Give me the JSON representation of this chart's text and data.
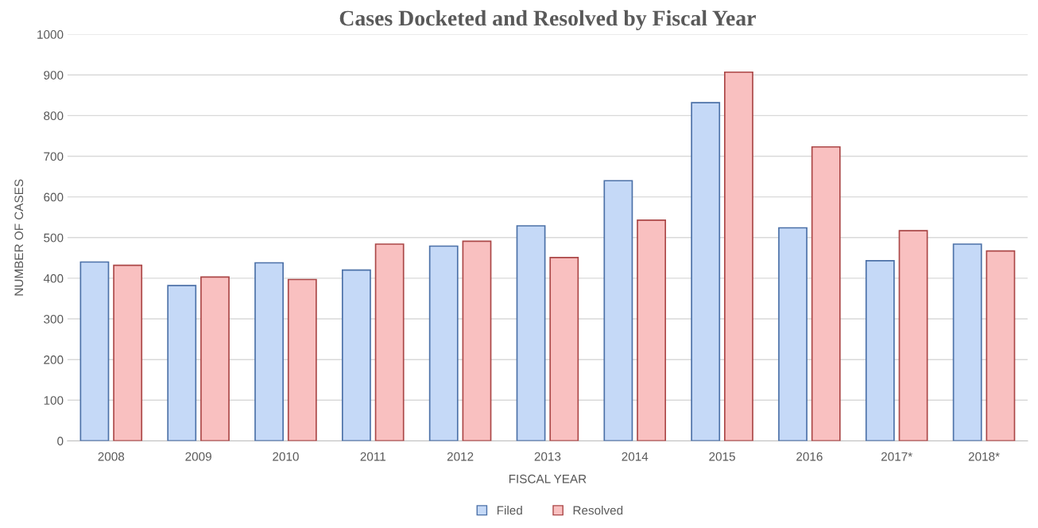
{
  "chart_data": {
    "type": "bar",
    "title": "Cases Docketed and Resolved by Fiscal Year",
    "xlabel": "FISCAL YEAR",
    "ylabel": "NUMBER OF CASES",
    "categories": [
      "2008",
      "2009",
      "2010",
      "2011",
      "2012",
      "2013",
      "2014",
      "2015",
      "2016",
      "2017*",
      "2018*"
    ],
    "series": [
      {
        "name": "Filed",
        "color": "#c5d9f7",
        "values": [
          440,
          382,
          438,
          420,
          479,
          529,
          640,
          832,
          524,
          443,
          484
        ]
      },
      {
        "name": "Resolved",
        "color": "#f9c0c0",
        "values": [
          432,
          403,
          397,
          484,
          491,
          451,
          543,
          907,
          723,
          517,
          467
        ]
      }
    ],
    "ylim": [
      0,
      1000
    ],
    "yticks": [
      0,
      100,
      200,
      300,
      400,
      500,
      600,
      700,
      800,
      900,
      1000
    ],
    "grid": "y",
    "legend": "bottom"
  }
}
